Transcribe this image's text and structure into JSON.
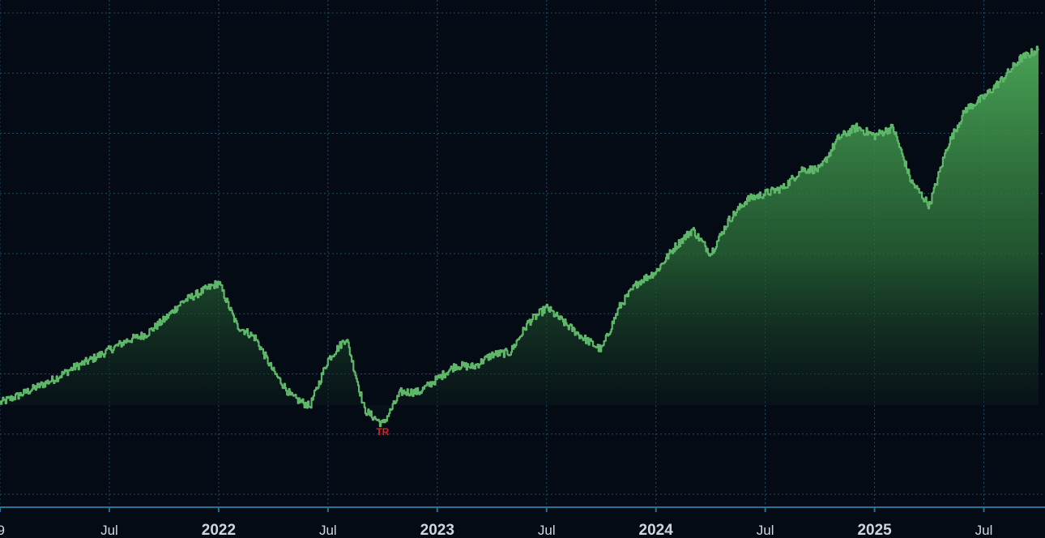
{
  "chart_data": {
    "type": "area",
    "title": "",
    "xlabel": "",
    "ylabel": "",
    "x_ticks": [
      {
        "label": "9",
        "date": "2021-01",
        "major": false
      },
      {
        "label": "Jul",
        "date": "2021-07",
        "major": false
      },
      {
        "label": "2022",
        "date": "2022-01",
        "major": true
      },
      {
        "label": "Jul",
        "date": "2022-07",
        "major": false
      },
      {
        "label": "2023",
        "date": "2023-01",
        "major": true
      },
      {
        "label": "Jul",
        "date": "2023-07",
        "major": false
      },
      {
        "label": "2024",
        "date": "2024-01",
        "major": true
      },
      {
        "label": "Jul",
        "date": "2024-07",
        "major": false
      },
      {
        "label": "2025",
        "date": "2025-01",
        "major": true
      },
      {
        "label": "Jul",
        "date": "2025-07",
        "major": false
      }
    ],
    "xlim": [
      "2021-01",
      "2025-10"
    ],
    "ylim": [
      3000,
      7000
    ],
    "y_gridlines": [
      3000,
      3500,
      4000,
      4500,
      5000,
      5500,
      6000,
      6500,
      7000
    ],
    "grid": true,
    "series": [
      {
        "color": "#5fb86a",
        "x": [
          "2021-01",
          "2021-02",
          "2021-03",
          "2021-04",
          "2021-05",
          "2021-06",
          "2021-07",
          "2021-08",
          "2021-09",
          "2021-10",
          "2021-11",
          "2021-12",
          "2022-01",
          "2022-02",
          "2022-03",
          "2022-04",
          "2022-05",
          "2022-06",
          "2022-07",
          "2022-08",
          "2022-09",
          "2022-10",
          "2022-11",
          "2022-12",
          "2023-01",
          "2023-02",
          "2023-03",
          "2023-04",
          "2023-05",
          "2023-06",
          "2023-07",
          "2023-08",
          "2023-09",
          "2023-10",
          "2023-11",
          "2023-12",
          "2024-01",
          "2024-02",
          "2024-03",
          "2024-04",
          "2024-05",
          "2024-06",
          "2024-07",
          "2024-08",
          "2024-09",
          "2024-10",
          "2024-11",
          "2024-12",
          "2025-01",
          "2025-02",
          "2025-03",
          "2025-04",
          "2025-05",
          "2025-06",
          "2025-07",
          "2025-08",
          "2025-09",
          "2025-10"
        ],
        "values": [
          3760,
          3820,
          3890,
          3960,
          4050,
          4120,
          4200,
          4280,
          4330,
          4450,
          4600,
          4680,
          4760,
          4400,
          4300,
          4020,
          3810,
          3730,
          4120,
          4300,
          3700,
          3580,
          3850,
          3850,
          3960,
          4070,
          4060,
          4160,
          4180,
          4430,
          4550,
          4420,
          4300,
          4200,
          4560,
          4760,
          4850,
          5050,
          5200,
          5000,
          5280,
          5450,
          5500,
          5550,
          5700,
          5700,
          5960,
          6050,
          5980,
          6050,
          5600,
          5400,
          5900,
          6200,
          6300,
          6450,
          6620,
          6700
        ]
      }
    ],
    "annotations": [
      {
        "text": "TR",
        "date": "2022-10",
        "color": "#e02020"
      }
    ]
  }
}
